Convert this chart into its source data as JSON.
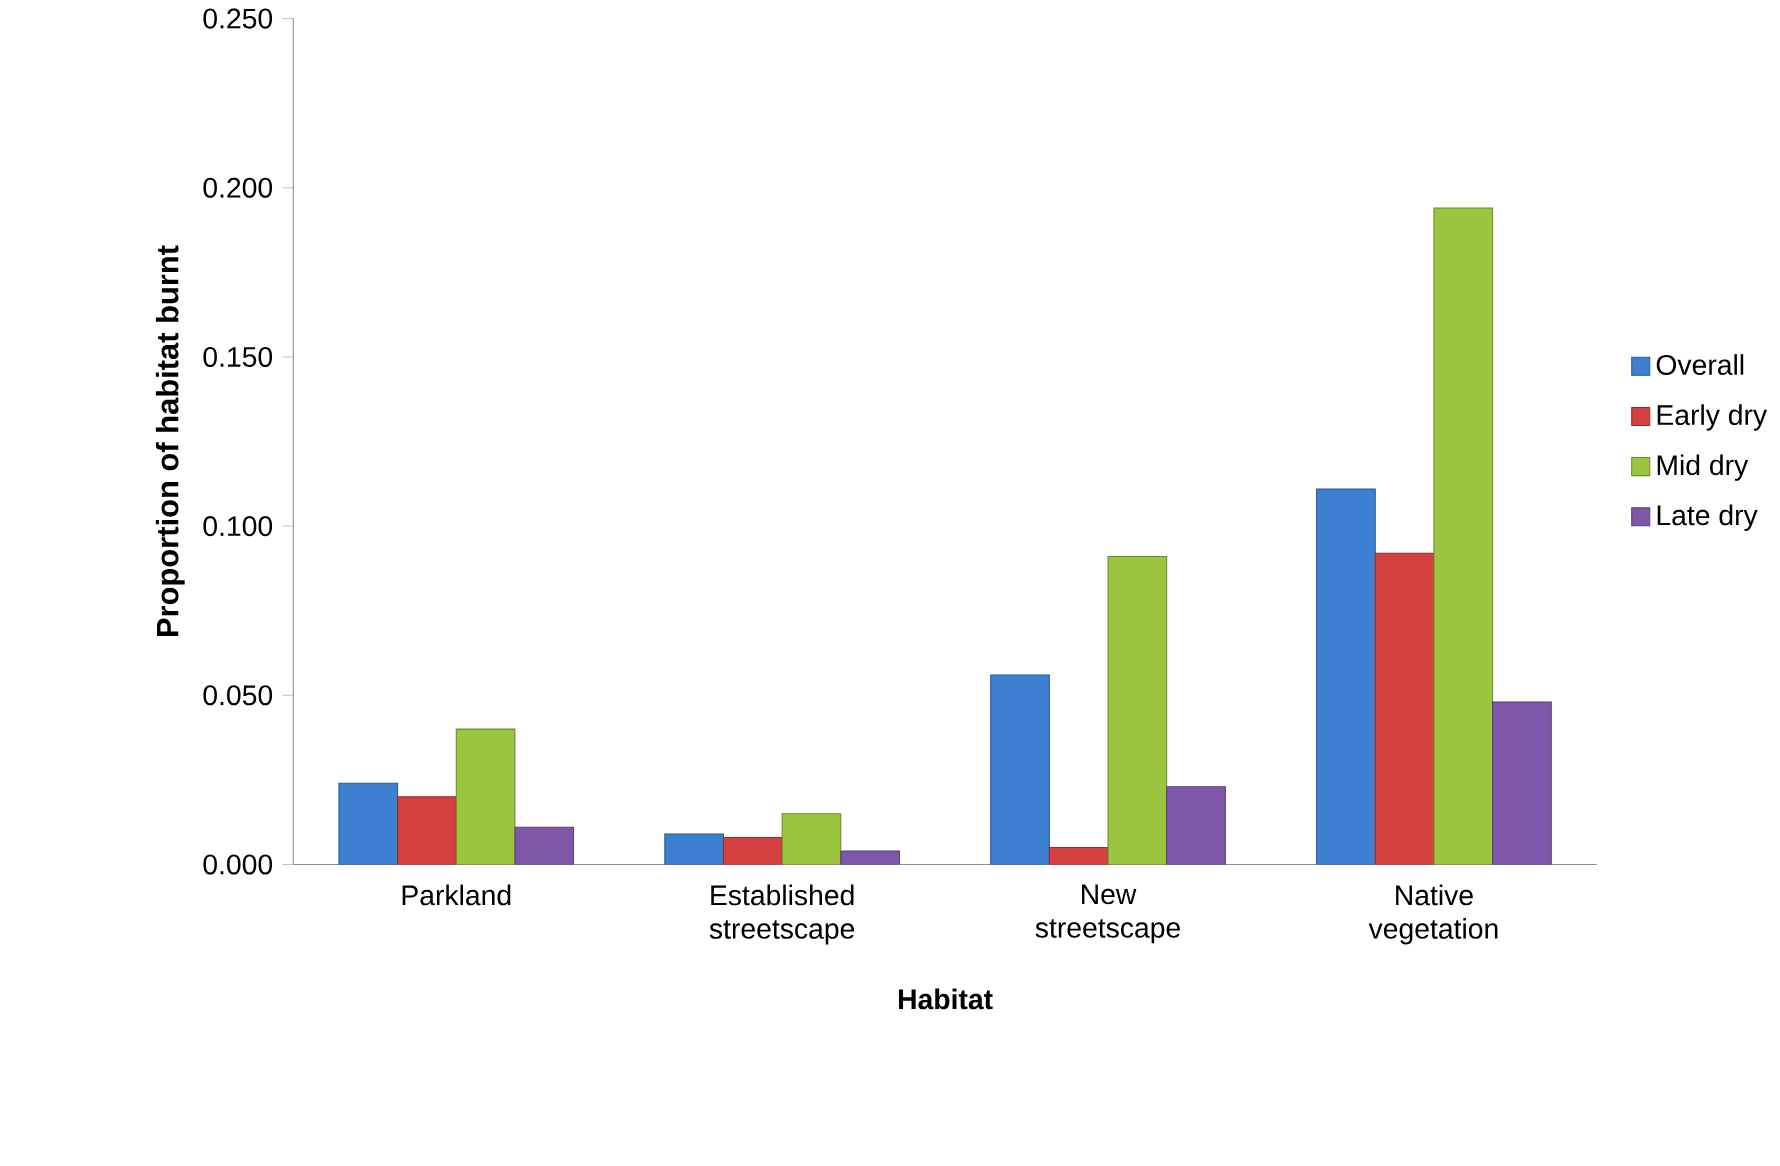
{
  "chart_data": {
    "type": "bar",
    "xlabel": "Habitat",
    "ylabel": "Proportion of habitat burnt",
    "categories": [
      "Parkland",
      "Established streetscape",
      "New streetscape",
      "Native vegetation"
    ],
    "series": [
      {
        "name": "Overall",
        "color": "#3d7fd0",
        "values": [
          0.024,
          0.009,
          0.056,
          0.111
        ]
      },
      {
        "name": "Early dry",
        "color": "#d43f3f",
        "values": [
          0.02,
          0.008,
          0.005,
          0.092
        ]
      },
      {
        "name": "Mid dry",
        "color": "#9bc43f",
        "values": [
          0.04,
          0.015,
          0.091,
          0.194
        ]
      },
      {
        "name": "Late dry",
        "color": "#7f57a8",
        "values": [
          0.011,
          0.004,
          0.023,
          0.048
        ]
      }
    ],
    "ylim": [
      0,
      0.25
    ],
    "yticks": [
      {
        "value": 0,
        "label": "0.000"
      },
      {
        "value": 0.05,
        "label": "0.050"
      },
      {
        "value": 0.1,
        "label": "0.100"
      },
      {
        "value": 0.15,
        "label": "0.150"
      },
      {
        "value": 0.2,
        "label": "0.200"
      },
      {
        "value": 0.25,
        "label": "0.250"
      }
    ],
    "legend": "right"
  }
}
